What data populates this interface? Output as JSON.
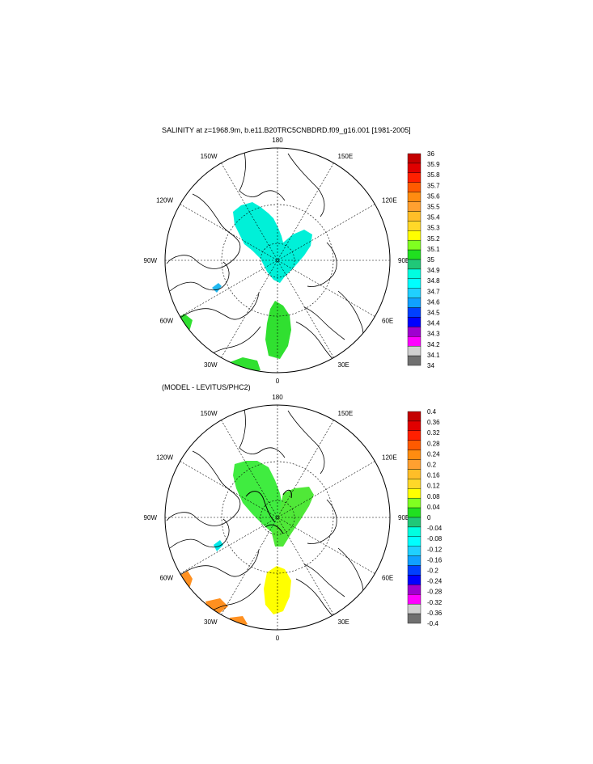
{
  "figure": {
    "top_title": "SALINITY at z=1968.9m, b.e11.B20TRC5CNBDRD.f09_g16.001 [1981-2005]",
    "bottom_title": "(MODEL - LEVITUS/PHC2)",
    "meridian_labels": [
      {
        "text": "180",
        "lon": 180
      },
      {
        "text": "150W",
        "lon": -150
      },
      {
        "text": "150E",
        "lon": 150
      },
      {
        "text": "120W",
        "lon": -120
      },
      {
        "text": "120E",
        "lon": 120
      },
      {
        "text": "90W",
        "lon": -90
      },
      {
        "text": "90E",
        "lon": 90
      },
      {
        "text": "60W",
        "lon": -60
      },
      {
        "text": "60E",
        "lon": 60
      },
      {
        "text": "30W",
        "lon": -30
      },
      {
        "text": "30E",
        "lon": 30
      },
      {
        "text": "0",
        "lon": 0
      }
    ]
  },
  "top_colorbar": {
    "labels": [
      "36",
      "35.9",
      "35.8",
      "35.7",
      "35.6",
      "35.5",
      "35.4",
      "35.3",
      "35.2",
      "35.1",
      "35",
      "34.9",
      "34.8",
      "34.7",
      "34.6",
      "34.5",
      "34.4",
      "34.3",
      "34.2",
      "34.1",
      "34"
    ],
    "colors": [
      "#c40000",
      "#e00000",
      "#ff2000",
      "#ff5a00",
      "#ff8c10",
      "#ffa030",
      "#ffbe28",
      "#ffd828",
      "#ffff00",
      "#80ff20",
      "#20e020",
      "#20c878",
      "#00ffe0",
      "#00ffff",
      "#20d0ff",
      "#10a0ff",
      "#0040ff",
      "#0000ff",
      "#a000d0",
      "#ff00ff",
      "#d0d0d0",
      "#707070"
    ]
  },
  "bottom_colorbar": {
    "labels": [
      "0.4",
      "0.36",
      "0.32",
      "0.28",
      "0.24",
      "0.2",
      "0.16",
      "0.12",
      "0.08",
      "0.04",
      "0",
      "-0.04",
      "-0.08",
      "-0.12",
      "-0.16",
      "-0.2",
      "-0.24",
      "-0.28",
      "-0.32",
      "-0.36",
      "-0.4"
    ],
    "colors": [
      "#c40000",
      "#e00000",
      "#ff2000",
      "#ff5a00",
      "#ff8c10",
      "#ffa030",
      "#ffbe28",
      "#ffd828",
      "#ffff00",
      "#80ff20",
      "#20e020",
      "#20c878",
      "#00ffe0",
      "#00ffff",
      "#20d0ff",
      "#10a0ff",
      "#0040ff",
      "#0000ff",
      "#a000d0",
      "#ff00ff",
      "#d0d0d0",
      "#707070"
    ]
  },
  "fields": {
    "top": {
      "pacific_side": "#00f0d8",
      "atlantic_side": "#30e030",
      "nordic": "#30e030",
      "greenland_sea": "#30e030",
      "baffin": "#20b8f0"
    },
    "bottom": {
      "pacific_side": "#40ec40",
      "atlantic_side": "#50e838",
      "nordic": "#ffff00",
      "greenland_sea": "#ff9020",
      "baffin": "#00e8e8"
    }
  }
}
